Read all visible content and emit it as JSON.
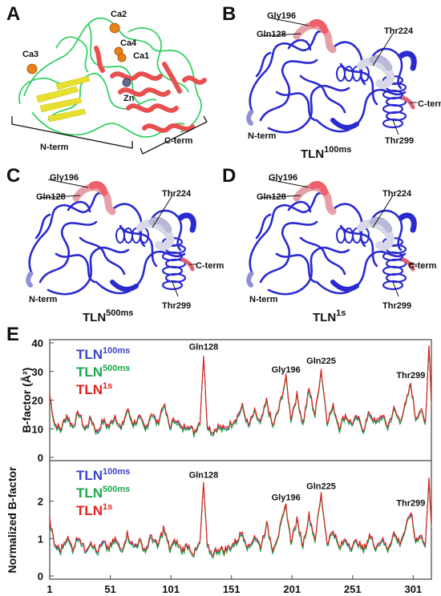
{
  "figure": {
    "panels": {
      "A": {
        "label": "A",
        "ions": [
          "Ca2",
          "Ca3",
          "Ca4",
          "Ca1",
          "Zn"
        ],
        "domains": [
          "N-term",
          "C-term"
        ]
      },
      "B": {
        "label": "B",
        "title_main": "TLN",
        "title_sup": "100ms",
        "residues": [
          "Gly196",
          "Gln128",
          "Thr224",
          "C-term",
          "N-term",
          "Thr299"
        ]
      },
      "C": {
        "label": "C",
        "title_main": "TLN",
        "title_sup": "500ms",
        "residues": [
          "Gly196",
          "Gln128",
          "Thr224",
          "C-term",
          "N-term",
          "Thr299"
        ]
      },
      "D": {
        "label": "D",
        "title_main": "TLN",
        "title_sup": "1s",
        "residues": [
          "Gly196",
          "Gln128",
          "Thr224",
          "C-term",
          "N-term",
          "Thr299"
        ]
      },
      "E": {
        "label": "E"
      }
    },
    "colors": {
      "helix": "#e85050",
      "loop": "#22cc55",
      "strand": "#e8e030",
      "ion_ca": "#e8801a",
      "ion_zn": "#6a6a90",
      "tube_blue": "#2a2ad0",
      "tlm100": "#3a44c8",
      "tln500": "#1aa84a",
      "tln1s": "#e51e1e"
    }
  },
  "chart_data": [
    {
      "type": "line",
      "ylabel": "B-factor (Å²)",
      "ylim": [
        0,
        40
      ],
      "yticks": [
        0,
        10,
        20,
        30,
        40
      ],
      "xlim": [
        1,
        316
      ],
      "legend": [
        {
          "main": "TLN",
          "sup": "100ms"
        },
        {
          "main": "TLN",
          "sup": "500ms"
        },
        {
          "main": "TLN",
          "sup": "1s"
        }
      ],
      "annotations": [
        {
          "text": "Gln128",
          "x": 128
        },
        {
          "text": "Gly196",
          "x": 196
        },
        {
          "text": "Gln225",
          "x": 225
        },
        {
          "text": "Thr299",
          "x": 299
        }
      ],
      "series_keys": [
        {
          "x": 1,
          "y": 22
        },
        {
          "x": 5,
          "y": 12
        },
        {
          "x": 10,
          "y": 10
        },
        {
          "x": 15,
          "y": 15
        },
        {
          "x": 20,
          "y": 11
        },
        {
          "x": 25,
          "y": 16
        },
        {
          "x": 30,
          "y": 10
        },
        {
          "x": 35,
          "y": 14
        },
        {
          "x": 40,
          "y": 9
        },
        {
          "x": 45,
          "y": 13
        },
        {
          "x": 50,
          "y": 11
        },
        {
          "x": 55,
          "y": 15
        },
        {
          "x": 60,
          "y": 10
        },
        {
          "x": 65,
          "y": 17
        },
        {
          "x": 70,
          "y": 12
        },
        {
          "x": 75,
          "y": 14
        },
        {
          "x": 80,
          "y": 10
        },
        {
          "x": 85,
          "y": 16
        },
        {
          "x": 90,
          "y": 12
        },
        {
          "x": 95,
          "y": 19
        },
        {
          "x": 100,
          "y": 11
        },
        {
          "x": 105,
          "y": 14
        },
        {
          "x": 110,
          "y": 10
        },
        {
          "x": 115,
          "y": 12
        },
        {
          "x": 120,
          "y": 9
        },
        {
          "x": 125,
          "y": 13
        },
        {
          "x": 128,
          "y": 36
        },
        {
          "x": 131,
          "y": 12
        },
        {
          "x": 135,
          "y": 9
        },
        {
          "x": 140,
          "y": 11
        },
        {
          "x": 145,
          "y": 10
        },
        {
          "x": 150,
          "y": 12
        },
        {
          "x": 155,
          "y": 14
        },
        {
          "x": 160,
          "y": 18
        },
        {
          "x": 165,
          "y": 11
        },
        {
          "x": 170,
          "y": 16
        },
        {
          "x": 175,
          "y": 12
        },
        {
          "x": 180,
          "y": 20
        },
        {
          "x": 185,
          "y": 11
        },
        {
          "x": 190,
          "y": 17
        },
        {
          "x": 196,
          "y": 28
        },
        {
          "x": 200,
          "y": 14
        },
        {
          "x": 205,
          "y": 22
        },
        {
          "x": 210,
          "y": 12
        },
        {
          "x": 215,
          "y": 24
        },
        {
          "x": 220,
          "y": 15
        },
        {
          "x": 225,
          "y": 31
        },
        {
          "x": 230,
          "y": 13
        },
        {
          "x": 235,
          "y": 18
        },
        {
          "x": 240,
          "y": 11
        },
        {
          "x": 245,
          "y": 15
        },
        {
          "x": 250,
          "y": 12
        },
        {
          "x": 255,
          "y": 14
        },
        {
          "x": 260,
          "y": 10
        },
        {
          "x": 265,
          "y": 16
        },
        {
          "x": 270,
          "y": 12
        },
        {
          "x": 275,
          "y": 15
        },
        {
          "x": 280,
          "y": 11
        },
        {
          "x": 285,
          "y": 17
        },
        {
          "x": 290,
          "y": 13
        },
        {
          "x": 295,
          "y": 19
        },
        {
          "x": 299,
          "y": 26
        },
        {
          "x": 303,
          "y": 14
        },
        {
          "x": 307,
          "y": 17
        },
        {
          "x": 311,
          "y": 12
        },
        {
          "x": 314,
          "y": 40
        },
        {
          "x": 316,
          "y": 20
        }
      ]
    },
    {
      "type": "line",
      "ylabel": "Normalized B-factor",
      "ylim": [
        0,
        3
      ],
      "yticks": [
        0,
        1,
        2
      ],
      "xlim": [
        1,
        316
      ],
      "xticks": [
        1,
        51,
        101,
        151,
        201,
        251,
        301
      ],
      "legend": [
        {
          "main": "TLN",
          "sup": "100ms"
        },
        {
          "main": "TLN",
          "sup": "500ms"
        },
        {
          "main": "TLN",
          "sup": "1s"
        }
      ],
      "annotations": [
        {
          "text": "Gln128",
          "x": 128
        },
        {
          "text": "Gly196",
          "x": 196
        },
        {
          "text": "Gln225",
          "x": 225
        },
        {
          "text": "Thr299",
          "x": 299
        }
      ],
      "series_keys": [
        {
          "x": 1,
          "y": 1.5
        },
        {
          "x": 5,
          "y": 0.85
        },
        {
          "x": 10,
          "y": 0.7
        },
        {
          "x": 15,
          "y": 1.05
        },
        {
          "x": 20,
          "y": 0.75
        },
        {
          "x": 25,
          "y": 1.1
        },
        {
          "x": 30,
          "y": 0.7
        },
        {
          "x": 35,
          "y": 0.95
        },
        {
          "x": 40,
          "y": 0.65
        },
        {
          "x": 45,
          "y": 0.9
        },
        {
          "x": 50,
          "y": 0.75
        },
        {
          "x": 55,
          "y": 1.0
        },
        {
          "x": 60,
          "y": 0.7
        },
        {
          "x": 65,
          "y": 1.15
        },
        {
          "x": 70,
          "y": 0.8
        },
        {
          "x": 75,
          "y": 0.95
        },
        {
          "x": 80,
          "y": 0.7
        },
        {
          "x": 85,
          "y": 1.1
        },
        {
          "x": 90,
          "y": 0.8
        },
        {
          "x": 95,
          "y": 1.3
        },
        {
          "x": 100,
          "y": 0.75
        },
        {
          "x": 105,
          "y": 0.95
        },
        {
          "x": 110,
          "y": 0.7
        },
        {
          "x": 115,
          "y": 0.85
        },
        {
          "x": 120,
          "y": 0.6
        },
        {
          "x": 125,
          "y": 0.9
        },
        {
          "x": 128,
          "y": 2.5
        },
        {
          "x": 131,
          "y": 0.8
        },
        {
          "x": 135,
          "y": 0.6
        },
        {
          "x": 140,
          "y": 0.75
        },
        {
          "x": 145,
          "y": 0.7
        },
        {
          "x": 150,
          "y": 0.8
        },
        {
          "x": 155,
          "y": 0.95
        },
        {
          "x": 160,
          "y": 1.2
        },
        {
          "x": 165,
          "y": 0.75
        },
        {
          "x": 170,
          "y": 1.1
        },
        {
          "x": 175,
          "y": 0.8
        },
        {
          "x": 180,
          "y": 1.4
        },
        {
          "x": 185,
          "y": 0.75
        },
        {
          "x": 190,
          "y": 1.15
        },
        {
          "x": 196,
          "y": 1.9
        },
        {
          "x": 200,
          "y": 0.95
        },
        {
          "x": 205,
          "y": 1.5
        },
        {
          "x": 210,
          "y": 0.85
        },
        {
          "x": 215,
          "y": 1.65
        },
        {
          "x": 220,
          "y": 1.0
        },
        {
          "x": 225,
          "y": 2.2
        },
        {
          "x": 230,
          "y": 0.9
        },
        {
          "x": 235,
          "y": 1.25
        },
        {
          "x": 240,
          "y": 0.75
        },
        {
          "x": 245,
          "y": 1.0
        },
        {
          "x": 250,
          "y": 0.8
        },
        {
          "x": 255,
          "y": 0.95
        },
        {
          "x": 260,
          "y": 0.7
        },
        {
          "x": 265,
          "y": 1.1
        },
        {
          "x": 270,
          "y": 0.8
        },
        {
          "x": 275,
          "y": 1.0
        },
        {
          "x": 280,
          "y": 0.75
        },
        {
          "x": 285,
          "y": 1.15
        },
        {
          "x": 290,
          "y": 0.9
        },
        {
          "x": 295,
          "y": 1.3
        },
        {
          "x": 299,
          "y": 1.75
        },
        {
          "x": 303,
          "y": 0.95
        },
        {
          "x": 307,
          "y": 1.15
        },
        {
          "x": 311,
          "y": 0.8
        },
        {
          "x": 314,
          "y": 2.7
        },
        {
          "x": 316,
          "y": 1.4
        }
      ]
    }
  ]
}
